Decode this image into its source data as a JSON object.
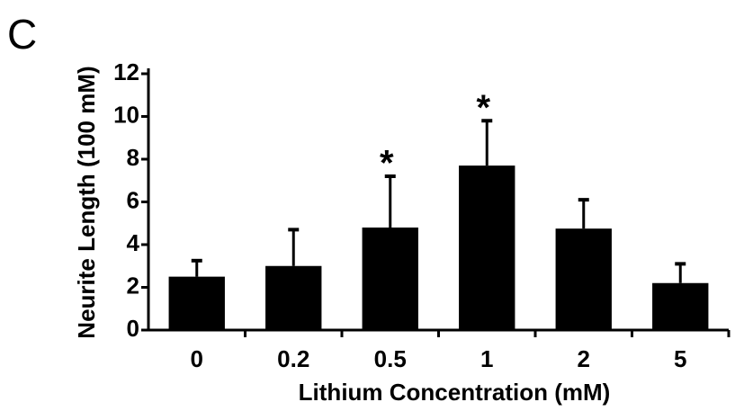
{
  "panel_label": "C",
  "chart_data": {
    "type": "bar",
    "xlabel": "Lithium Concentration (mM)",
    "ylabel": "Neurite Length (100 mM)",
    "categories": [
      "0",
      "0.2",
      "0.5",
      "1",
      "2",
      "5"
    ],
    "values": [
      2.5,
      3.0,
      4.8,
      7.7,
      4.75,
      2.2
    ],
    "errors": [
      0.75,
      1.7,
      2.4,
      2.1,
      1.35,
      0.9
    ],
    "color": "#000000",
    "ylim": [
      0,
      12
    ],
    "yticks": [
      0,
      2,
      4,
      6,
      8,
      10,
      12
    ],
    "annotations": [
      {
        "text": "*",
        "category": "0.5"
      },
      {
        "text": "*",
        "category": "1"
      }
    ]
  }
}
